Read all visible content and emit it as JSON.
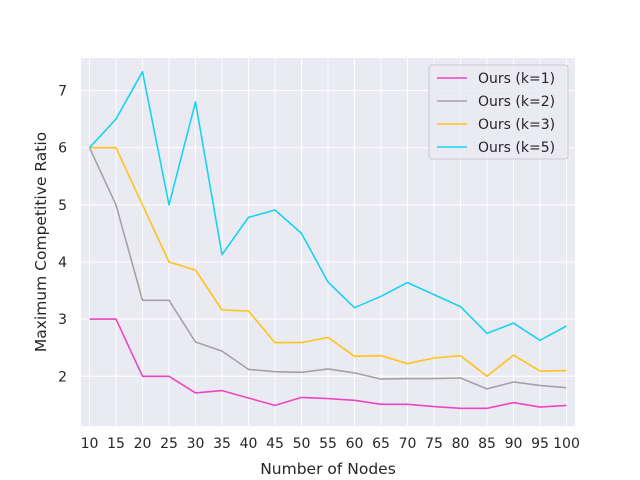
{
  "chart_data": {
    "type": "line",
    "title": "",
    "xlabel": "Number of Nodes",
    "ylabel": "Maximum Competitive Ratio",
    "x": [
      10,
      15,
      20,
      25,
      30,
      35,
      40,
      45,
      50,
      55,
      60,
      65,
      70,
      75,
      80,
      85,
      90,
      95,
      100
    ],
    "x_tick_labels": [
      "10",
      "15",
      "20",
      "25",
      "30",
      "35",
      "40",
      "45",
      "50",
      "55",
      "60",
      "65",
      "70",
      "75",
      "80",
      "85",
      "90",
      "95",
      "100"
    ],
    "y_ticks": [
      2,
      3,
      4,
      5,
      6,
      7
    ],
    "y_tick_labels": [
      "2",
      "3",
      "4",
      "5",
      "6",
      "7"
    ],
    "xlim": [
      8.4,
      101.6
    ],
    "ylim": [
      1.13,
      7.57
    ],
    "grid": true,
    "background": "#eaeaf2",
    "legend_position": "top-right",
    "series": [
      {
        "name": "Ours (k=1)",
        "color": "#ef45c1",
        "values": [
          3.0,
          3.0,
          2.0,
          2.0,
          1.71,
          1.75,
          1.62,
          1.49,
          1.63,
          1.61,
          1.58,
          1.51,
          1.51,
          1.47,
          1.44,
          1.44,
          1.54,
          1.46,
          1.49
        ]
      },
      {
        "name": "Ours (k=2)",
        "color": "#a3a3a3",
        "values": [
          6.0,
          5.0,
          3.33,
          3.33,
          2.6,
          2.44,
          2.12,
          2.08,
          2.07,
          2.13,
          2.06,
          1.95,
          1.96,
          1.96,
          1.97,
          1.78,
          1.9,
          1.84,
          1.8
        ]
      },
      {
        "name": "Ours (k=3)",
        "color": "#ffc31a",
        "values": [
          6.0,
          6.0,
          5.0,
          4.0,
          3.86,
          3.16,
          3.14,
          2.59,
          2.59,
          2.68,
          2.35,
          2.36,
          2.22,
          2.32,
          2.36,
          2.0,
          2.37,
          2.09,
          2.1
        ]
      },
      {
        "name": "Ours (k=5)",
        "color": "#17d4f0",
        "values": [
          6.0,
          6.5,
          7.33,
          5.0,
          6.8,
          4.13,
          4.78,
          4.91,
          4.5,
          3.65,
          3.2,
          3.4,
          3.64,
          3.43,
          3.22,
          2.75,
          2.93,
          2.63,
          2.88
        ]
      }
    ]
  }
}
